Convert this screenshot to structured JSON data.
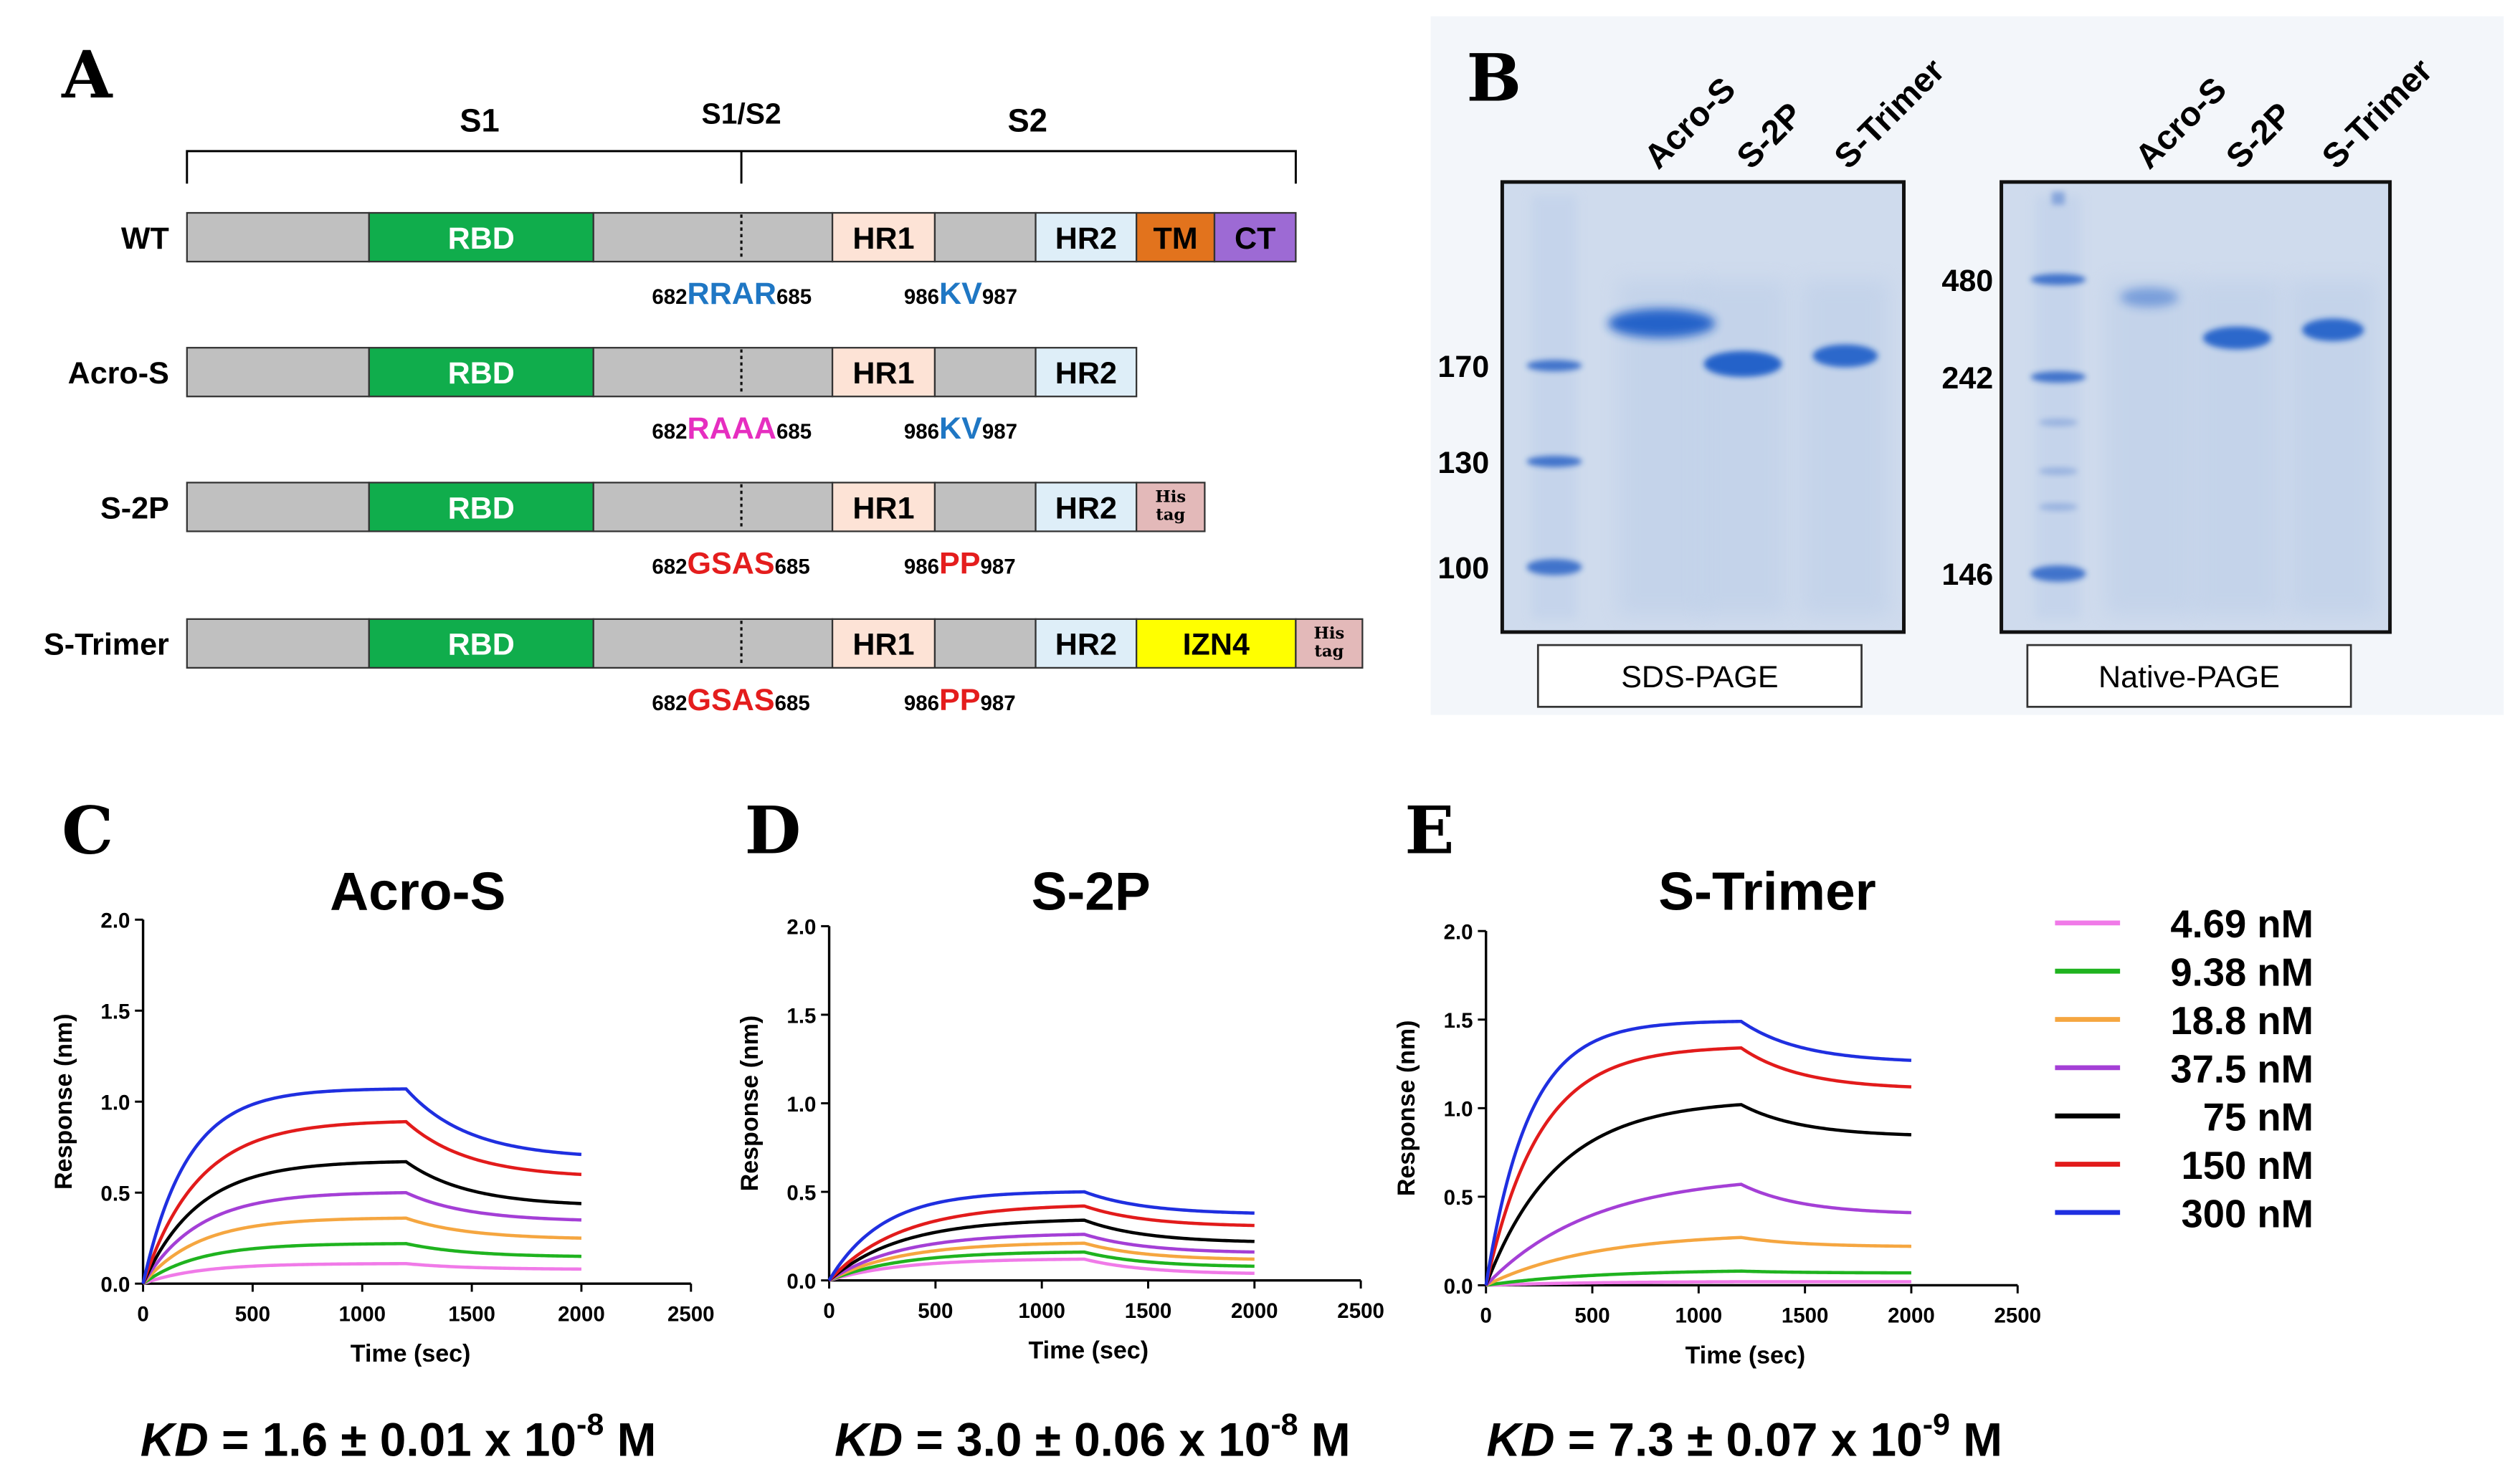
{
  "panelA": {
    "label": "A",
    "regions": {
      "s1": "S1",
      "s1s2": "S1/S2",
      "s2": "S2"
    },
    "constructs": [
      {
        "name": "WT",
        "domains": [
          {
            "label": "",
            "color": "#c0c0c0"
          },
          {
            "label": "RBD",
            "color": "#10ad4c",
            "text": "#ffffff"
          },
          {
            "label": "",
            "color": "#c0c0c0"
          },
          {
            "label": "HR1",
            "color": "#fde3d6",
            "text": "#000000"
          },
          {
            "label": "",
            "color": "#c0c0c0"
          },
          {
            "label": "HR2",
            "color": "#deeef8",
            "text": "#000000"
          },
          {
            "label": "TM",
            "color": "#e2731d",
            "text": "#000000"
          },
          {
            "label": "CT",
            "color": "#9d6ad4",
            "text": "#000000"
          }
        ],
        "site1": {
          "pre": "682",
          "motif": "RRAR",
          "post": "685",
          "color": "#1f77c4"
        },
        "site2": {
          "pre": "986",
          "motif": "KV",
          "post": "987",
          "color": "#1f77c4"
        }
      },
      {
        "name": "Acro-S",
        "domains": [
          {
            "label": "",
            "color": "#c0c0c0"
          },
          {
            "label": "RBD",
            "color": "#10ad4c",
            "text": "#ffffff"
          },
          {
            "label": "",
            "color": "#c0c0c0"
          },
          {
            "label": "HR1",
            "color": "#fde3d6",
            "text": "#000000"
          },
          {
            "label": "",
            "color": "#c0c0c0"
          },
          {
            "label": "HR2",
            "color": "#deeef8",
            "text": "#000000"
          }
        ],
        "site1": {
          "pre": "682",
          "motif": "RAAA",
          "post": "685",
          "color": "#e62ec0"
        },
        "site2": {
          "pre": "986",
          "motif": "KV",
          "post": "987",
          "color": "#1f77c4"
        }
      },
      {
        "name": "S-2P",
        "domains": [
          {
            "label": "",
            "color": "#c0c0c0"
          },
          {
            "label": "RBD",
            "color": "#10ad4c",
            "text": "#ffffff"
          },
          {
            "label": "",
            "color": "#c0c0c0"
          },
          {
            "label": "HR1",
            "color": "#fde3d6",
            "text": "#000000"
          },
          {
            "label": "",
            "color": "#c0c0c0"
          },
          {
            "label": "HR2",
            "color": "#deeef8",
            "text": "#000000"
          },
          {
            "label": "His tag",
            "color": "#e3b9b9",
            "text": "#000000",
            "small": true
          }
        ],
        "site1": {
          "pre": "682",
          "motif": "GSAS",
          "post": "685",
          "color": "#e41d1d"
        },
        "site2": {
          "pre": "986",
          "motif": "PP",
          "post": "987",
          "color": "#e41d1d"
        }
      },
      {
        "name": "S-Trimer",
        "domains": [
          {
            "label": "",
            "color": "#c0c0c0"
          },
          {
            "label": "RBD",
            "color": "#10ad4c",
            "text": "#ffffff"
          },
          {
            "label": "",
            "color": "#c0c0c0"
          },
          {
            "label": "HR1",
            "color": "#fde3d6",
            "text": "#000000"
          },
          {
            "label": "",
            "color": "#c0c0c0"
          },
          {
            "label": "HR2",
            "color": "#deeef8",
            "text": "#000000"
          },
          {
            "label": "IZN4",
            "color": "#ffff00",
            "text": "#000000"
          },
          {
            "label": "His tag",
            "color": "#e3b9b9",
            "text": "#000000",
            "small": true
          }
        ],
        "site1": {
          "pre": "682",
          "motif": "GSAS",
          "post": "685",
          "color": "#e41d1d"
        },
        "site2": {
          "pre": "986",
          "motif": "PP",
          "post": "987",
          "color": "#e41d1d"
        }
      }
    ]
  },
  "panelB": {
    "label": "B",
    "gels": [
      {
        "caption": "SDS-PAGE",
        "lanes": [
          "Acro-S",
          "S-2P",
          "S-Trimer"
        ],
        "markers": [
          "170",
          "130",
          "100"
        ]
      },
      {
        "caption": "Native-PAGE",
        "lanes": [
          "Acro-S",
          "S-2P",
          "S-Trimer"
        ],
        "markers": [
          "480",
          "242",
          "146"
        ]
      }
    ]
  },
  "legend": {
    "entries": [
      {
        "label": "4.69 nM",
        "color": "#f07ae8"
      },
      {
        "label": "9.38 nM",
        "color": "#1fb31f"
      },
      {
        "label": "18.8 nM",
        "color": "#f5a640"
      },
      {
        "label": "37.5 nM",
        "color": "#a43fd6"
      },
      {
        "label": "75 nM",
        "color": "#000000"
      },
      {
        "label": "150 nM",
        "color": "#e21b1b"
      },
      {
        "label": "300 nM",
        "color": "#1f2fe0"
      }
    ]
  },
  "chart_data": [
    {
      "type": "line",
      "panel": "C",
      "title": "Acro-S",
      "xlabel": "Time (sec)",
      "ylabel": "Response (nm)",
      "xlim": [
        0,
        2500
      ],
      "ylim": [
        0,
        2.0
      ],
      "xticks": [
        "0",
        "500",
        "1000",
        "1500",
        "2000",
        "2500"
      ],
      "yticks": [
        "0.0",
        "0.5",
        "1.0",
        "1.5",
        "2.0"
      ],
      "association_end": 1200,
      "dissociation_end": 2000,
      "series": [
        {
          "name": "4.69 nM",
          "peak": 0.11,
          "end": 0.08,
          "k": 0.004
        },
        {
          "name": "9.38 nM",
          "peak": 0.22,
          "end": 0.15,
          "k": 0.004
        },
        {
          "name": "18.8 nM",
          "peak": 0.36,
          "end": 0.25,
          "k": 0.004
        },
        {
          "name": "37.5 nM",
          "peak": 0.5,
          "end": 0.35,
          "k": 0.004
        },
        {
          "name": "75 nM",
          "peak": 0.67,
          "end": 0.44,
          "k": 0.004
        },
        {
          "name": "150 nM",
          "peak": 0.89,
          "end": 0.6,
          "k": 0.004
        },
        {
          "name": "300 nM",
          "peak": 1.07,
          "end": 0.71,
          "k": 0.005
        }
      ],
      "kd": {
        "value": "1.6",
        "pm": "0.01",
        "exp": "-8"
      }
    },
    {
      "type": "line",
      "panel": "D",
      "title": "S-2P",
      "xlabel": "Time (sec)",
      "ylabel": "Response (nm)",
      "xlim": [
        0,
        2500
      ],
      "ylim": [
        0,
        2.0
      ],
      "xticks": [
        "0",
        "500",
        "1000",
        "1500",
        "2000",
        "2500"
      ],
      "yticks": [
        "0.0",
        "0.5",
        "1.0",
        "1.5",
        "2.0"
      ],
      "association_end": 1200,
      "dissociation_end": 2000,
      "series": [
        {
          "name": "4.69 nM",
          "peak": 0.12,
          "end": 0.04,
          "k": 0.003
        },
        {
          "name": "9.38 nM",
          "peak": 0.16,
          "end": 0.08,
          "k": 0.003
        },
        {
          "name": "18.8 nM",
          "peak": 0.21,
          "end": 0.12,
          "k": 0.003
        },
        {
          "name": "37.5 nM",
          "peak": 0.26,
          "end": 0.16,
          "k": 0.003
        },
        {
          "name": "75 nM",
          "peak": 0.34,
          "end": 0.22,
          "k": 0.003
        },
        {
          "name": "150 nM",
          "peak": 0.42,
          "end": 0.31,
          "k": 0.003
        },
        {
          "name": "300 nM",
          "peak": 0.5,
          "end": 0.38,
          "k": 0.004
        }
      ],
      "kd": {
        "value": "3.0",
        "pm": "0.06",
        "exp": "-8"
      }
    },
    {
      "type": "line",
      "panel": "E",
      "title": "S-Trimer",
      "xlabel": "Time (sec)",
      "ylabel": "Response (nm)",
      "xlim": [
        0,
        2500
      ],
      "ylim": [
        0,
        2.0
      ],
      "xticks": [
        "0",
        "500",
        "1000",
        "1500",
        "2000",
        "2500"
      ],
      "yticks": [
        "0.0",
        "0.5",
        "1.0",
        "1.5",
        "2.0"
      ],
      "association_end": 1200,
      "dissociation_end": 2000,
      "series": [
        {
          "name": "4.69 nM",
          "peak": 0.02,
          "end": 0.02,
          "k": 0.002
        },
        {
          "name": "9.38 nM",
          "peak": 0.08,
          "end": 0.07,
          "k": 0.002
        },
        {
          "name": "18.8 nM",
          "peak": 0.27,
          "end": 0.22,
          "k": 0.002
        },
        {
          "name": "37.5 nM",
          "peak": 0.57,
          "end": 0.41,
          "k": 0.002
        },
        {
          "name": "75 nM",
          "peak": 1.02,
          "end": 0.85,
          "k": 0.003
        },
        {
          "name": "150 nM",
          "peak": 1.34,
          "end": 1.12,
          "k": 0.004
        },
        {
          "name": "300 nM",
          "peak": 1.49,
          "end": 1.27,
          "k": 0.005
        }
      ],
      "kd": {
        "value": "7.3",
        "pm": "0.07",
        "exp": "-9"
      }
    }
  ],
  "kd_prefix": "KD",
  "kd_equals": " = ",
  "kd_pm": " ± ",
  "kd_times": " x 10",
  "kd_unit": " M"
}
